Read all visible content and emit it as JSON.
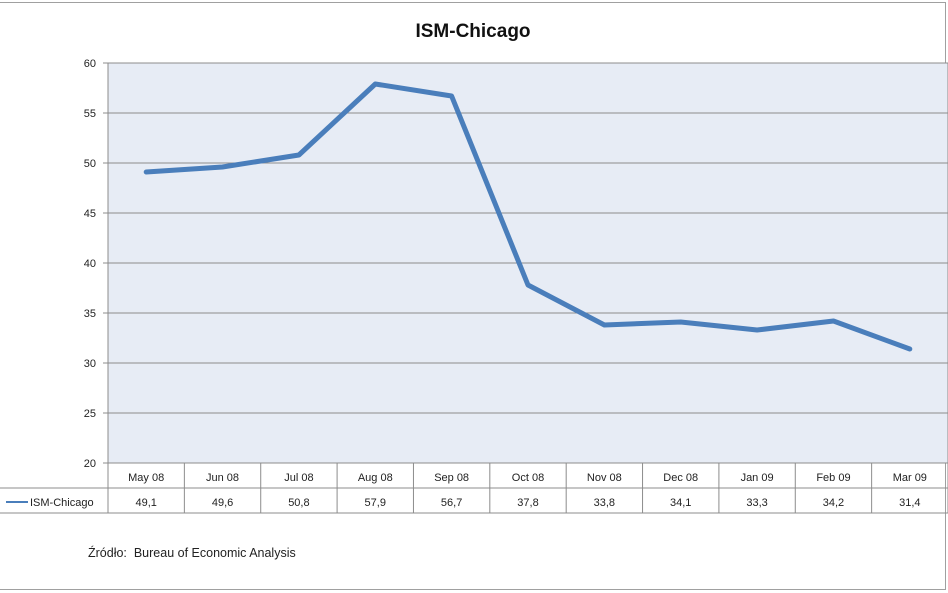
{
  "chart_data": {
    "type": "line",
    "title": "ISM-Chicago",
    "categories": [
      "May 08",
      "Jun 08",
      "Jul 08",
      "Aug 08",
      "Sep 08",
      "Oct 08",
      "Nov 08",
      "Dec 08",
      "Jan 09",
      "Feb 09",
      "Mar 09"
    ],
    "series": [
      {
        "name": "ISM-Chicago",
        "values": [
          49.1,
          49.6,
          50.8,
          57.9,
          56.7,
          37.8,
          33.8,
          34.1,
          33.3,
          34.2,
          31.4
        ],
        "value_labels": [
          "49,1",
          "49,6",
          "50,8",
          "57,9",
          "56,7",
          "37,8",
          "33,8",
          "34,1",
          "33,3",
          "34,2",
          "31,4"
        ],
        "color": "#4a7ebb"
      }
    ],
    "ylim": [
      20,
      60
    ],
    "yticks": [
      20,
      25,
      30,
      35,
      40,
      45,
      50,
      55,
      60
    ],
    "grid": true,
    "legend": "data-table-left",
    "plot_background": "#e7ecf5"
  },
  "footer": {
    "source": "Źródło:  Bureau of Economic Analysis"
  }
}
